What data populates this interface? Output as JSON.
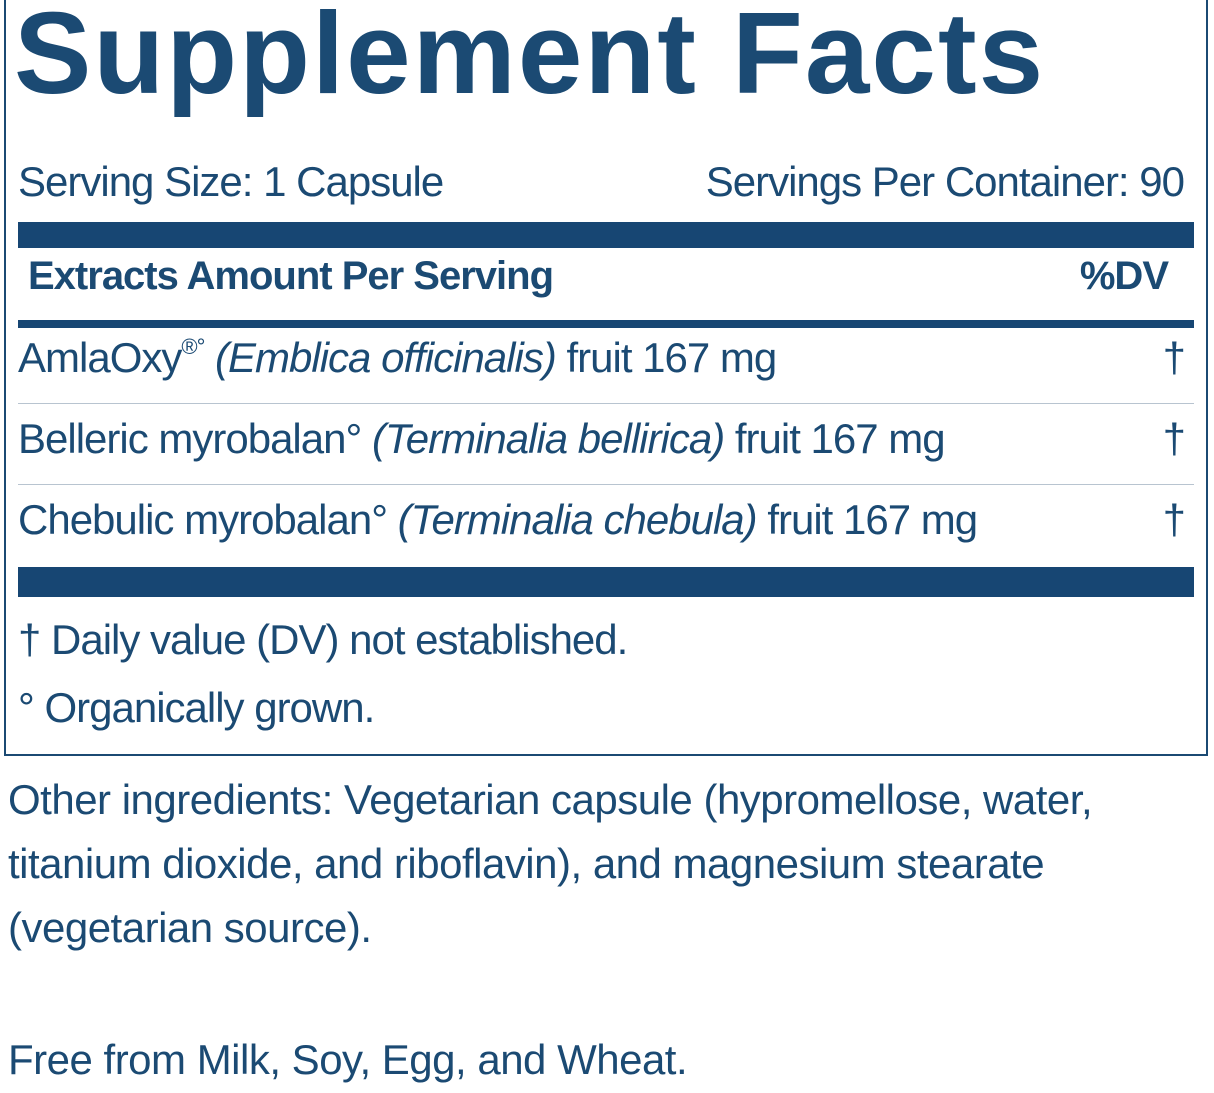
{
  "label": {
    "title": "Supplement Facts",
    "serving_size": "Serving Size: 1 Capsule",
    "servings_per_container": "Servings Per Container: 90",
    "header": {
      "left": "Extracts Amount Per Serving",
      "right": "%DV"
    },
    "rows": [
      {
        "name": "AmlaOxy",
        "mark": "®°",
        "latin": "(Emblica officinalis)",
        "amount": "fruit 167 mg",
        "dv": "†"
      },
      {
        "name": "Belleric myrobalan°",
        "latin": "(Terminalia bellirica)",
        "amount": "fruit 167 mg",
        "dv": "†"
      },
      {
        "name": "Chebulic myrobalan°",
        "latin": "(Terminalia chebula)",
        "amount": "fruit 167 mg",
        "dv": "†"
      }
    ],
    "footnotes": [
      "† Daily value (DV) not established.",
      "° Organically grown."
    ]
  },
  "other_ingredients": [
    "Other ingredients: Vegetarian capsule (hypromellose, water,",
    "titanium dioxide, and riboflavin), and magnesium stearate",
    "(vegetarian source)."
  ],
  "free_from": "Free from Milk, Soy, Egg, and Wheat."
}
